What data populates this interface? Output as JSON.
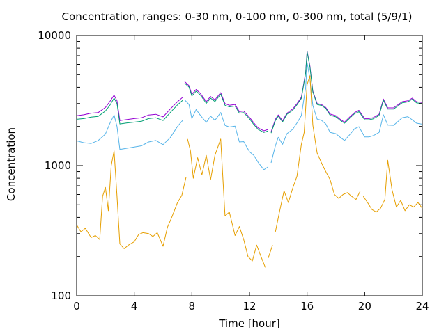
{
  "chart_data": {
    "type": "line",
    "title": "Concentration, ranges: 0-30 nm, 0-100 nm, 0-300 nm, total (5/9/1)",
    "xlabel": "Time [hour]",
    "ylabel": "Concentration",
    "xlim": [
      0,
      24
    ],
    "ylim": [
      100,
      10000
    ],
    "yscale": "log",
    "xticks": [
      0,
      4,
      8,
      12,
      16,
      20,
      24
    ],
    "yticks": [
      100,
      1000,
      10000
    ],
    "grid": false,
    "legend": "none",
    "series": [
      {
        "color": "#9400d3",
        "x": [
          0,
          0.5,
          1,
          1.5,
          2,
          2.3,
          2.6,
          2.8,
          3,
          3.5,
          4,
          4.5,
          5,
          5.5,
          6,
          6.5,
          7,
          7.4,
          null,
          7.5,
          7.8,
          8,
          8.3,
          8.6,
          9,
          9.3,
          9.6,
          10,
          10.3,
          10.6,
          11,
          11.3,
          11.6,
          12,
          12.3,
          12.6,
          13,
          13.3,
          null,
          13.5,
          13.8,
          14,
          14.3,
          14.6,
          15,
          15.3,
          15.6,
          15.9,
          16,
          16.2,
          16.4,
          16.7,
          17,
          17.3,
          17.6,
          18,
          18.3,
          18.6,
          19,
          19.3,
          19.6,
          20,
          20.3,
          20.6,
          21,
          21.3,
          21.6,
          22,
          22.3,
          22.6,
          23,
          23.3,
          23.6,
          24
        ],
        "y": [
          2420,
          2460,
          2530,
          2560,
          2800,
          3100,
          3480,
          3150,
          2220,
          2260,
          2300,
          2330,
          2450,
          2480,
          2370,
          2720,
          3100,
          3380,
          null,
          4420,
          4120,
          3530,
          3850,
          3580,
          3100,
          3400,
          3200,
          3640,
          3000,
          2910,
          2950,
          2600,
          2630,
          2350,
          2130,
          1950,
          1850,
          1900,
          null,
          1820,
          2270,
          2450,
          2210,
          2530,
          2720,
          3000,
          3350,
          5200,
          7600,
          5800,
          3750,
          3000,
          2950,
          2800,
          2490,
          2420,
          2270,
          2160,
          2390,
          2560,
          2660,
          2300,
          2300,
          2340,
          2480,
          3250,
          2780,
          2780,
          2930,
          3100,
          3150,
          3300,
          3100,
          3050
        ]
      },
      {
        "color": "#009e73",
        "x": [
          0,
          0.5,
          1,
          1.5,
          2,
          2.3,
          2.6,
          2.8,
          3,
          3.5,
          4,
          4.5,
          5,
          5.5,
          6,
          6.5,
          7,
          7.4,
          null,
          7.5,
          7.8,
          8,
          8.3,
          8.6,
          9,
          9.3,
          9.6,
          10,
          10.3,
          10.6,
          11,
          11.3,
          11.6,
          12,
          12.3,
          12.6,
          13,
          13.3,
          null,
          13.5,
          13.8,
          14,
          14.3,
          14.6,
          15,
          15.3,
          15.6,
          15.9,
          16,
          16.2,
          16.4,
          16.7,
          17,
          17.3,
          17.6,
          18,
          18.3,
          18.6,
          19,
          19.3,
          19.6,
          20,
          20.3,
          20.6,
          21,
          21.3,
          21.6,
          22,
          22.3,
          22.6,
          23,
          23.3,
          23.6,
          24
        ],
        "y": [
          2270,
          2300,
          2360,
          2390,
          2630,
          2900,
          3300,
          3000,
          2090,
          2130,
          2160,
          2190,
          2300,
          2330,
          2220,
          2560,
          2930,
          3200,
          null,
          4300,
          4020,
          3430,
          3740,
          3480,
          3010,
          3300,
          3110,
          3540,
          2910,
          2830,
          2870,
          2530,
          2560,
          2290,
          2070,
          1900,
          1800,
          1850,
          null,
          1780,
          2220,
          2400,
          2170,
          2480,
          2660,
          2940,
          3280,
          5120,
          7500,
          5700,
          3690,
          2950,
          2900,
          2750,
          2440,
          2370,
          2230,
          2120,
          2340,
          2510,
          2600,
          2250,
          2250,
          2290,
          2430,
          3180,
          2720,
          2720,
          2870,
          3040,
          3090,
          3240,
          3040,
          2990
        ]
      },
      {
        "color": "#56b4e9",
        "x": [
          0,
          0.5,
          1,
          1.5,
          2,
          2.3,
          2.6,
          2.8,
          3,
          3.5,
          4,
          4.5,
          5,
          5.5,
          6,
          6.5,
          7,
          7.4,
          null,
          7.5,
          7.8,
          8,
          8.3,
          8.6,
          9,
          9.3,
          9.6,
          10,
          10.3,
          10.6,
          11,
          11.3,
          11.6,
          12,
          12.3,
          12.6,
          13,
          13.3,
          null,
          13.5,
          13.8,
          14,
          14.3,
          14.6,
          15,
          15.3,
          15.6,
          15.9,
          16,
          16.2,
          16.4,
          16.7,
          17,
          17.3,
          17.6,
          18,
          18.3,
          18.6,
          19,
          19.3,
          19.6,
          20,
          20.3,
          20.6,
          21,
          21.3,
          21.6,
          22,
          22.3,
          22.6,
          23,
          23.3,
          23.6,
          24
        ],
        "y": [
          1550,
          1500,
          1480,
          1560,
          1750,
          2100,
          2450,
          2000,
          1330,
          1360,
          1390,
          1420,
          1520,
          1560,
          1450,
          1640,
          2000,
          2250,
          null,
          3200,
          2950,
          2300,
          2700,
          2430,
          2150,
          2400,
          2230,
          2560,
          2040,
          1980,
          2010,
          1520,
          1530,
          1280,
          1200,
          1060,
          930,
          980,
          null,
          1050,
          1420,
          1650,
          1460,
          1760,
          1900,
          2130,
          2420,
          3960,
          6200,
          4600,
          2900,
          2280,
          2230,
          2090,
          1800,
          1760,
          1650,
          1560,
          1750,
          1920,
          1990,
          1660,
          1660,
          1700,
          1800,
          2460,
          2050,
          2040,
          2180,
          2330,
          2380,
          2250,
          2120,
          2080
        ]
      },
      {
        "color": "#e69f00",
        "x": [
          0,
          0.3,
          0.6,
          1,
          1.3,
          1.6,
          1.8,
          2,
          2.2,
          2.4,
          2.6,
          2.8,
          3,
          3.3,
          3.6,
          4,
          4.3,
          4.6,
          5,
          5.3,
          5.6,
          6,
          6.3,
          6.6,
          7,
          7.3,
          7.6,
          null,
          7.7,
          7.9,
          8.1,
          8.4,
          8.7,
          9,
          9.3,
          9.6,
          10,
          10.3,
          10.6,
          11,
          11.3,
          11.6,
          11.9,
          12.2,
          12.5,
          12.8,
          13.1,
          null,
          13.3,
          13.6,
          null,
          13.8,
          14.1,
          14.4,
          14.7,
          15,
          15.3,
          15.6,
          15.8,
          16,
          16.2,
          16.4,
          16.7,
          17,
          17.3,
          17.6,
          17.9,
          18.2,
          18.5,
          18.8,
          19.1,
          19.4,
          19.7,
          null,
          19.9,
          20.2,
          20.5,
          20.8,
          21.1,
          21.4,
          21.6,
          21.9,
          22.2,
          22.5,
          22.8,
          23.1,
          23.4,
          23.7,
          24
        ],
        "y": [
          350,
          310,
          330,
          280,
          290,
          270,
          580,
          680,
          450,
          1000,
          1300,
          580,
          250,
          230,
          245,
          260,
          295,
          305,
          300,
          285,
          305,
          240,
          335,
          400,
          520,
          590,
          820,
          null,
          1600,
          1300,
          800,
          1150,
          850,
          1200,
          780,
          1200,
          1600,
          410,
          440,
          290,
          340,
          270,
          200,
          185,
          245,
          200,
          165,
          null,
          195,
          245,
          null,
          310,
          450,
          640,
          520,
          670,
          830,
          1450,
          1800,
          4200,
          4900,
          2050,
          1250,
          1050,
          900,
          780,
          600,
          560,
          600,
          620,
          580,
          550,
          640,
          null,
          580,
          520,
          460,
          440,
          470,
          550,
          1100,
          650,
          480,
          540,
          450,
          500,
          480,
          520,
          470
        ]
      }
    ]
  }
}
